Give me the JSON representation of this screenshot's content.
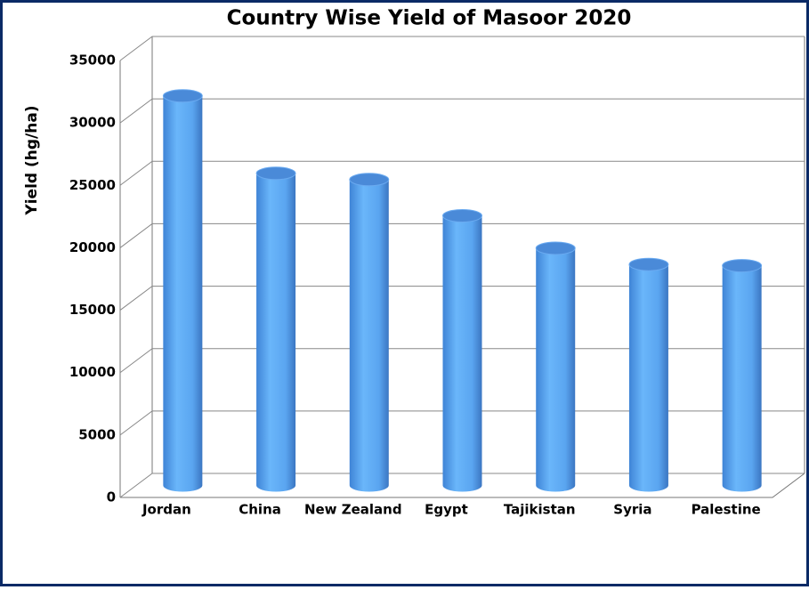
{
  "chart_data": {
    "type": "bar3d",
    "title": "Country Wise Yield of Masoor 2020",
    "y_label": "Yield (hg/ha)",
    "categories": [
      "Jordan",
      "China",
      "New Zealand",
      "Egypt",
      "Tajikistan",
      "Syria",
      "Palestine"
    ],
    "values": [
      31200,
      25000,
      24500,
      21600,
      19000,
      17700,
      17600
    ],
    "color": "#5aa5f0",
    "ylim": [
      0,
      35000
    ],
    "yticks": [
      0,
      5000,
      10000,
      15000,
      20000,
      25000,
      30000,
      35000
    ],
    "grid": true
  }
}
